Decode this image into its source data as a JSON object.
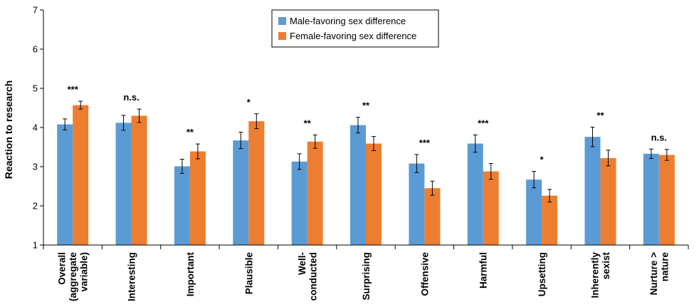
{
  "chart_data": {
    "type": "bar",
    "title": "",
    "ylabel": "Reaction to research",
    "xlabel": "",
    "ylim": [
      1,
      7
    ],
    "yticks": [
      1,
      2,
      3,
      4,
      5,
      6,
      7
    ],
    "grid": false,
    "legend_position": "top-center",
    "categories": [
      [
        "Overall",
        "(aggregate",
        "variable)"
      ],
      [
        "Interesting"
      ],
      [
        "Important"
      ],
      [
        "Plausible"
      ],
      [
        "Well-",
        "conducted"
      ],
      [
        "Surprising"
      ],
      [
        "Offensive"
      ],
      [
        "Harmful"
      ],
      [
        "Upsetting"
      ],
      [
        "Inherently",
        "sexist"
      ],
      [
        "Nurture >",
        "nature"
      ]
    ],
    "significance": [
      "***",
      "n.s.",
      "**",
      "*",
      "**",
      "**",
      "***",
      "***",
      "*",
      "**",
      "n.s."
    ],
    "series": [
      {
        "name": "Male-favoring sex difference",
        "color": "#5b9bd5",
        "values": [
          4.08,
          4.12,
          3.01,
          3.67,
          3.13,
          4.06,
          3.08,
          3.59,
          2.67,
          3.76,
          3.33
        ],
        "errors": [
          0.14,
          0.19,
          0.18,
          0.21,
          0.2,
          0.2,
          0.23,
          0.22,
          0.21,
          0.25,
          0.12
        ]
      },
      {
        "name": "Female-favoring sex difference",
        "color": "#ed7d31",
        "values": [
          4.57,
          4.3,
          3.39,
          4.16,
          3.64,
          3.59,
          2.45,
          2.88,
          2.26,
          3.22,
          3.3
        ],
        "errors": [
          0.1,
          0.17,
          0.19,
          0.19,
          0.17,
          0.18,
          0.18,
          0.2,
          0.16,
          0.2,
          0.14
        ]
      }
    ]
  }
}
